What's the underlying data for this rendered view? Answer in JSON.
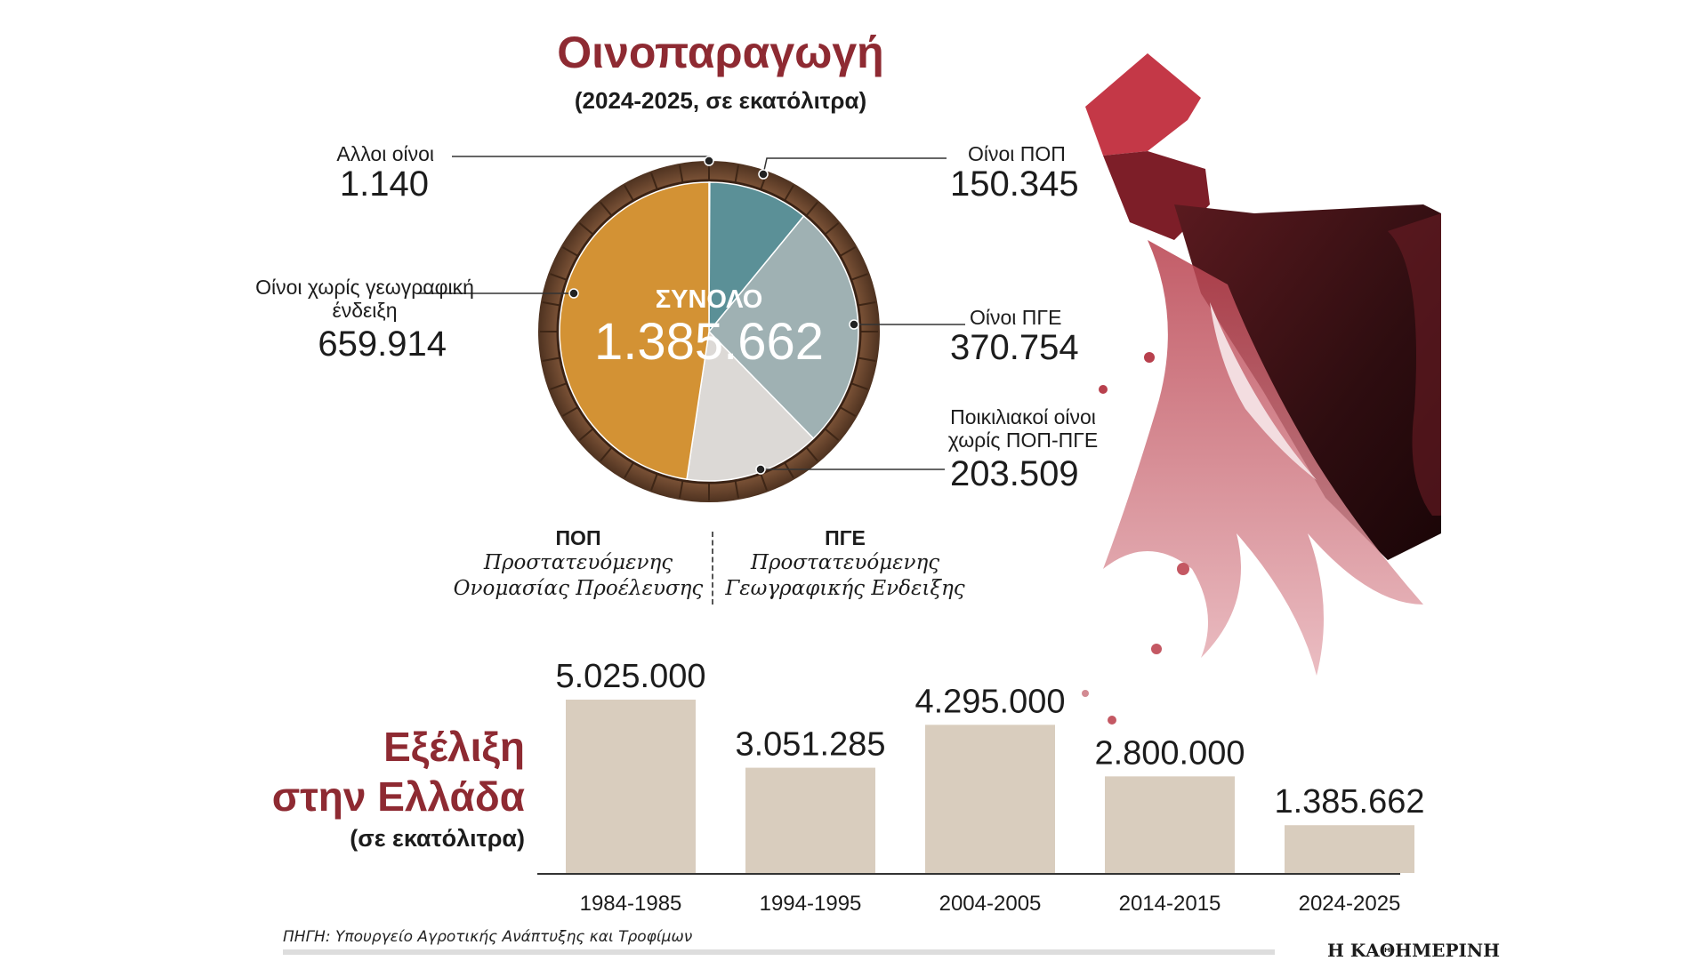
{
  "header": {
    "title": "Οινοπαραγωγή",
    "subtitle": "(2024-2025, σε εκατόλιτρα)"
  },
  "pie": {
    "center_label": "ΣΥΝΟΛΟ",
    "center_value": "1.385.662"
  },
  "legend": {
    "pop_abbr": "ΠΟΠ",
    "pop_line1": "Προστατευόμενης",
    "pop_line2": "Ονομασίας Προέλευσης",
    "pge_abbr": "ΠΓΕ",
    "pge_line1": "Προστατευόμενης",
    "pge_line2": "Γεωγραφικής Ενδειξης"
  },
  "bars": {
    "heading_line1": "Εξέλιξη",
    "heading_line2": "στην Ελλάδα",
    "unit": "(σε εκατόλιτρα)"
  },
  "footer": {
    "source": "ΠΗΓΗ: Υπουργείο Αγροτικής Ανάπτυξης και Τροφίμων",
    "brand": "Η ΚΑΘΗΜΕΡΙΝΗ"
  },
  "colors": {
    "title": "#8e2a32",
    "bar": "#d9cdbe",
    "slice_pop": "#5b9097",
    "slice_pge": "#9fb1b3",
    "slice_varietal": "#dcd9d6",
    "slice_nogeo": "#d39234",
    "slice_other": "#7a5a3a",
    "barrel_ring": "#7a5238"
  },
  "chart_data": [
    {
      "type": "pie",
      "title": "Οινοπαραγωγή",
      "subtitle": "(2024-2025, σε εκατόλιτρα)",
      "total_label": "ΣΥΝΟΛΟ",
      "total": 1385662,
      "slices": [
        {
          "name": "Αλλοι οίνοι",
          "value": 1140,
          "display": "1.140"
        },
        {
          "name": "Οίνοι ΠΟΠ",
          "value": 150345,
          "display": "150.345"
        },
        {
          "name": "Οίνοι ΠΓΕ",
          "value": 370754,
          "display": "370.754"
        },
        {
          "name": "Ποικιλιακοί οίνοι χωρίς ΠΟΠ-ΠΓΕ",
          "value": 203509,
          "display": "203.509"
        },
        {
          "name": "Οίνοι χωρίς γεωγραφική ένδειξη",
          "value": 659914,
          "display": "659.914"
        }
      ]
    },
    {
      "type": "bar",
      "title": "Εξέλιξη στην Ελλάδα",
      "ylabel": "(σε εκατόλιτρα)",
      "categories": [
        "1984-1985",
        "1994-1995",
        "2004-2005",
        "2014-2015",
        "2024-2025"
      ],
      "values": [
        5025000,
        3051285,
        4295000,
        2800000,
        1385662
      ],
      "value_labels": [
        "5.025.000",
        "3.051.285",
        "4.295.000",
        "2.800.000",
        "1.385.662"
      ]
    }
  ]
}
